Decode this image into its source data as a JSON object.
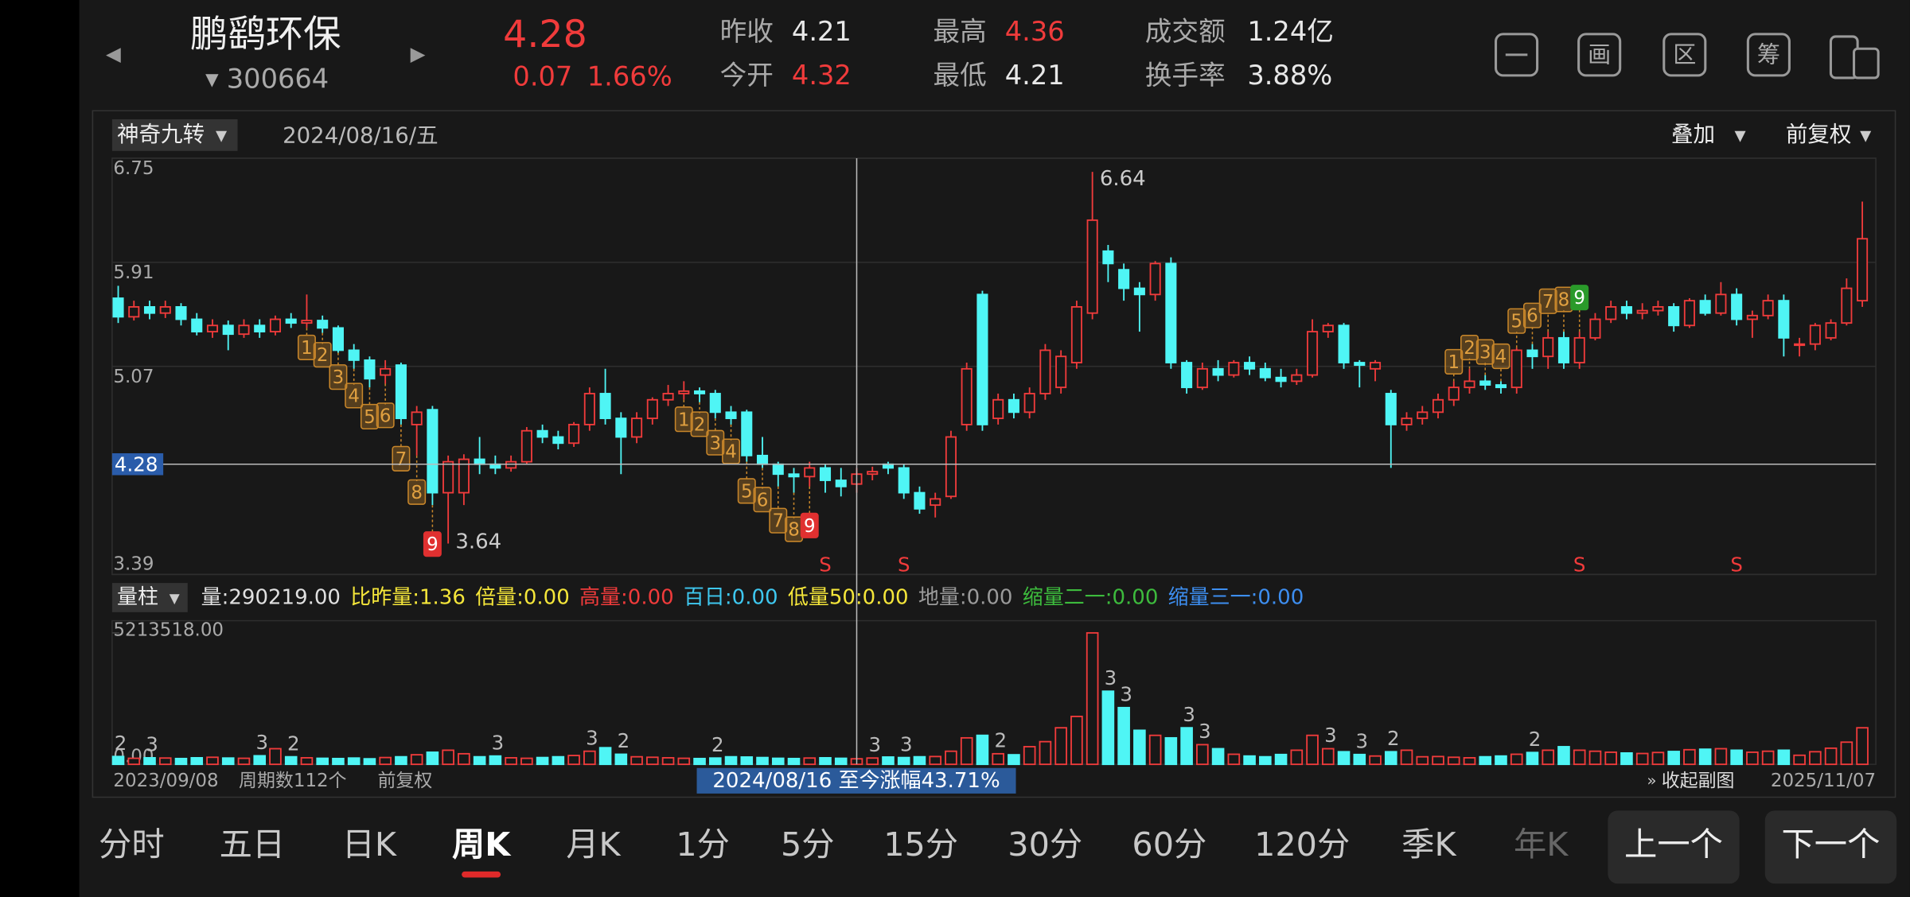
{
  "header": {
    "name": "鹏鹞环保",
    "code": "300664",
    "price": "4.28",
    "change": "0.07",
    "change_pct": "1.66%",
    "stats": [
      {
        "label": "昨收",
        "value": "4.21",
        "color": "#e8e8e8"
      },
      {
        "label": "今开",
        "value": "4.32",
        "color": "#f03b3b"
      },
      {
        "label": "最高",
        "value": "4.36",
        "color": "#f03b3b"
      },
      {
        "label": "最低",
        "value": "4.21",
        "color": "#e8e8e8"
      },
      {
        "label": "成交额",
        "value": "1.24亿",
        "color": "#e8e8e8"
      },
      {
        "label": "换手率",
        "value": "3.88%",
        "color": "#e8e8e8"
      }
    ],
    "tools": [
      "画",
      "区",
      "筹"
    ]
  },
  "toolbar": {
    "indicator": "神奇九转",
    "date": "2024/08/16/五",
    "overlay": "叠加",
    "adjust": "前复权"
  },
  "chart_data": {
    "type": "candlestick",
    "up_color": "#f03b3b",
    "down_color": "#4ff5f5",
    "grid": true,
    "ylim": [
      3.39,
      6.75
    ],
    "yticks": [
      3.39,
      5.07,
      5.91,
      6.75
    ],
    "open": [
      5.62,
      5.47,
      5.55,
      5.5,
      5.55,
      5.45,
      5.35,
      5.4,
      5.33,
      5.4,
      5.35,
      5.45,
      5.42,
      5.44,
      5.38,
      5.2,
      5.12,
      5.0,
      5.08,
      4.6,
      4.72,
      4.05,
      4.05,
      4.32,
      4.28,
      4.25,
      4.3,
      4.55,
      4.5,
      4.45,
      4.6,
      4.85,
      4.65,
      4.5,
      4.65,
      4.8,
      4.85,
      4.87,
      4.85,
      4.7,
      4.7,
      4.35,
      4.28,
      4.2,
      4.18,
      4.25,
      4.15,
      4.12,
      4.2,
      4.28,
      4.25,
      4.05,
      3.95,
      4.02,
      4.6,
      5.65,
      4.65,
      4.8,
      4.7,
      4.85,
      4.9,
      5.1,
      5.5,
      6.0,
      5.85,
      5.7,
      5.65,
      5.9,
      5.1,
      4.9,
      5.05,
      5.0,
      5.1,
      5.05,
      4.98,
      4.95,
      5.0,
      5.35,
      5.4,
      5.1,
      5.05,
      4.85,
      4.6,
      4.65,
      4.7,
      4.8,
      4.9,
      4.95,
      4.92,
      4.9,
      5.2,
      5.15,
      5.3,
      5.1,
      5.3,
      5.45,
      5.55,
      5.5,
      5.52,
      5.55,
      5.4,
      5.6,
      5.5,
      5.65,
      5.45,
      5.48,
      5.6,
      5.25,
      5.25,
      5.3,
      5.42,
      5.6
    ],
    "high": [
      5.72,
      5.6,
      5.6,
      5.6,
      5.58,
      5.5,
      5.45,
      5.44,
      5.45,
      5.45,
      5.48,
      5.5,
      5.65,
      5.48,
      5.4,
      5.25,
      5.15,
      5.12,
      5.1,
      4.75,
      4.75,
      4.35,
      4.36,
      4.5,
      4.35,
      4.35,
      4.58,
      4.6,
      4.55,
      4.62,
      4.9,
      5.05,
      4.7,
      4.7,
      4.82,
      4.92,
      4.95,
      4.9,
      4.88,
      4.75,
      4.72,
      4.5,
      4.3,
      4.25,
      4.3,
      4.28,
      4.25,
      4.25,
      4.26,
      4.3,
      4.28,
      4.1,
      4.05,
      4.55,
      5.1,
      5.68,
      4.85,
      4.85,
      4.9,
      5.25,
      5.2,
      5.6,
      6.64,
      6.05,
      5.9,
      5.75,
      5.92,
      5.95,
      5.12,
      5.1,
      5.12,
      5.12,
      5.15,
      5.1,
      5.05,
      5.05,
      5.45,
      5.42,
      5.42,
      5.12,
      5.12,
      4.88,
      4.7,
      4.75,
      4.85,
      4.95,
      5.05,
      5.0,
      4.95,
      5.22,
      5.25,
      5.35,
      5.35,
      5.35,
      5.5,
      5.6,
      5.6,
      5.58,
      5.6,
      5.58,
      5.62,
      5.65,
      5.75,
      5.7,
      5.52,
      5.65,
      5.65,
      5.3,
      5.42,
      5.45,
      5.78,
      6.4
    ],
    "low": [
      5.42,
      5.44,
      5.45,
      5.46,
      5.4,
      5.32,
      5.3,
      5.2,
      5.3,
      5.3,
      5.32,
      5.38,
      5.38,
      5.34,
      5.18,
      5.05,
      4.9,
      4.93,
      4.6,
      4.35,
      3.95,
      3.64,
      3.95,
      4.2,
      4.2,
      4.22,
      4.28,
      4.45,
      4.4,
      4.42,
      4.55,
      4.6,
      4.2,
      4.45,
      4.6,
      4.75,
      4.8,
      4.78,
      4.65,
      4.6,
      4.3,
      4.25,
      4.1,
      4.05,
      4.1,
      4.05,
      4.02,
      4.05,
      4.15,
      4.2,
      4.0,
      3.88,
      3.85,
      4.0,
      4.55,
      4.55,
      4.6,
      4.65,
      4.65,
      4.8,
      4.85,
      5.05,
      5.45,
      5.75,
      5.6,
      5.35,
      5.6,
      5.05,
      4.85,
      4.88,
      4.95,
      4.98,
      5.0,
      4.95,
      4.9,
      4.92,
      4.98,
      5.3,
      5.05,
      4.9,
      4.95,
      4.25,
      4.55,
      4.6,
      4.65,
      4.75,
      4.85,
      4.88,
      4.85,
      4.85,
      5.05,
      5.05,
      5.05,
      5.05,
      5.28,
      5.42,
      5.45,
      5.45,
      5.48,
      5.35,
      5.38,
      5.48,
      5.48,
      5.4,
      5.3,
      5.45,
      5.15,
      5.15,
      5.2,
      5.28,
      5.4,
      5.55
    ],
    "close": [
      5.47,
      5.55,
      5.5,
      5.55,
      5.45,
      5.35,
      5.4,
      5.33,
      5.4,
      5.35,
      5.45,
      5.42,
      5.44,
      5.38,
      5.2,
      5.12,
      4.97,
      5.05,
      4.65,
      4.7,
      4.05,
      4.3,
      4.32,
      4.28,
      4.25,
      4.3,
      4.55,
      4.5,
      4.45,
      4.6,
      4.85,
      4.65,
      4.5,
      4.65,
      4.8,
      4.85,
      4.87,
      4.85,
      4.7,
      4.65,
      4.35,
      4.28,
      4.2,
      4.18,
      4.25,
      4.15,
      4.1,
      4.2,
      4.22,
      4.25,
      4.05,
      3.92,
      4.0,
      4.5,
      5.05,
      4.6,
      4.8,
      4.7,
      4.85,
      5.2,
      5.15,
      5.55,
      6.25,
      5.9,
      5.7,
      5.65,
      5.9,
      5.1,
      4.9,
      5.05,
      5.0,
      5.1,
      5.05,
      4.98,
      4.95,
      5.0,
      5.35,
      5.4,
      5.1,
      5.08,
      5.1,
      4.6,
      4.65,
      4.7,
      4.8,
      4.9,
      4.95,
      4.92,
      4.9,
      5.2,
      5.15,
      5.3,
      5.1,
      5.3,
      5.45,
      5.55,
      5.5,
      5.52,
      5.55,
      5.4,
      5.6,
      5.5,
      5.65,
      5.45,
      5.48,
      5.6,
      5.3,
      5.25,
      5.4,
      5.42,
      5.7,
      6.1
    ],
    "extremes": {
      "high_index": 62,
      "low_index": 21
    },
    "crosshair": {
      "index": 47,
      "value": 4.28
    },
    "nine_turn": [
      {
        "start": 12,
        "counts": [
          1,
          2,
          3,
          4,
          5,
          6,
          7,
          8,
          9
        ],
        "side": "below",
        "color": "#c8862a",
        "last_color": "#e03030"
      },
      {
        "start": 36,
        "counts": [
          1,
          2,
          3,
          4,
          5,
          6,
          7,
          8,
          9
        ],
        "side": "below",
        "color": "#c8862a",
        "last_color": "#e03030"
      },
      {
        "start": 85,
        "counts": [
          1,
          2,
          3,
          4,
          5,
          6,
          7,
          8,
          9
        ],
        "side": "above",
        "color": "#c8862a",
        "last_color": "#2a9a2a"
      }
    ],
    "sell_signal": {
      "label": "S",
      "indices": [
        45,
        50,
        93,
        103
      ],
      "color": "#f03b3b"
    },
    "volume": {
      "ylim": [
        0,
        5213518
      ],
      "yticks": [
        {
          "value": 0,
          "label": "0.00"
        },
        {
          "value": 5213518,
          "label": "5213518.00"
        }
      ],
      "values": [
        310000,
        240000,
        260000,
        250000,
        230000,
        260000,
        280000,
        250000,
        240000,
        340000,
        620000,
        300000,
        260000,
        240000,
        230000,
        250000,
        220000,
        270000,
        300000,
        380000,
        480000,
        560000,
        420000,
        300000,
        330000,
        260000,
        240000,
        270000,
        300000,
        350000,
        520000,
        660000,
        400000,
        300000,
        280000,
        260000,
        240000,
        230000,
        250000,
        300000,
        290000,
        270000,
        240000,
        230000,
        250000,
        260000,
        240000,
        220000,
        250000,
        290000,
        270000,
        300000,
        310000,
        520000,
        1050000,
        1150000,
        420000,
        380000,
        700000,
        900000,
        1450000,
        1900000,
        5213518,
        2900000,
        2250000,
        1350000,
        1150000,
        1050000,
        1450000,
        780000,
        620000,
        400000,
        330000,
        300000,
        390000,
        560000,
        1150000,
        620000,
        500000,
        390000,
        330000,
        500000,
        560000,
        300000,
        310000,
        280000,
        260000,
        300000,
        330000,
        400000,
        470000,
        560000,
        700000,
        560000,
        520000,
        480000,
        450000,
        430000,
        470000,
        510000,
        580000,
        600000,
        620000,
        560000,
        480000,
        520000,
        560000,
        360000,
        500000,
        640000,
        880000,
        1450000
      ],
      "labels": [
        {
          "index": 0,
          "count": 2
        },
        {
          "index": 2,
          "count": 3
        },
        {
          "index": 9,
          "count": 3
        },
        {
          "index": 11,
          "count": 2
        },
        {
          "index": 24,
          "count": 3
        },
        {
          "index": 30,
          "count": 3
        },
        {
          "index": 32,
          "count": 2
        },
        {
          "index": 38,
          "count": 2
        },
        {
          "index": 48,
          "count": 3
        },
        {
          "index": 50,
          "count": 3
        },
        {
          "index": 56,
          "count": 2
        },
        {
          "index": 63,
          "count": 3
        },
        {
          "index": 64,
          "count": 3
        },
        {
          "index": 68,
          "count": 3
        },
        {
          "index": 69,
          "count": 3
        },
        {
          "index": 77,
          "count": 3
        },
        {
          "index": 79,
          "count": 3
        },
        {
          "index": 81,
          "count": 2
        },
        {
          "index": 90,
          "count": 2
        }
      ]
    }
  },
  "indicator_bar": {
    "name": "量柱",
    "items": [
      {
        "label": "量:",
        "value": "290219.00",
        "color": "#e0e0e0"
      },
      {
        "label": "比昨量:",
        "value": "1.36",
        "color": "#f5e63a"
      },
      {
        "label": "倍量:",
        "value": "0.00",
        "color": "#f5e63a"
      },
      {
        "label": "高量:",
        "value": "0.00",
        "color": "#f03b3b"
      },
      {
        "label": "百日:",
        "value": "0.00",
        "color": "#3ec8f0"
      },
      {
        "label": "低量50:",
        "value": "0.00",
        "color": "#f5e63a"
      },
      {
        "label": "地量:",
        "value": "0.00",
        "color": "#9a9a9a"
      },
      {
        "label": "缩量二一:",
        "value": "0.00",
        "color": "#3dbb3d"
      },
      {
        "label": "缩量三一:",
        "value": "0.00",
        "color": "#3d8ef0"
      }
    ]
  },
  "footer": {
    "start_date": "2023/09/08",
    "periods": "周期数112个",
    "adjust": "前复权",
    "range_note": "2024/08/16 至今涨幅43.71%",
    "collapse": "收起副图",
    "end_date": "2025/11/07"
  },
  "tabs": {
    "items": [
      "分时",
      "五日",
      "日K",
      "周K",
      "月K",
      "1分",
      "5分",
      "15分",
      "30分",
      "60分",
      "120分",
      "季K",
      "年K"
    ],
    "active": 3,
    "prev": "上一个",
    "next": "下一个"
  }
}
